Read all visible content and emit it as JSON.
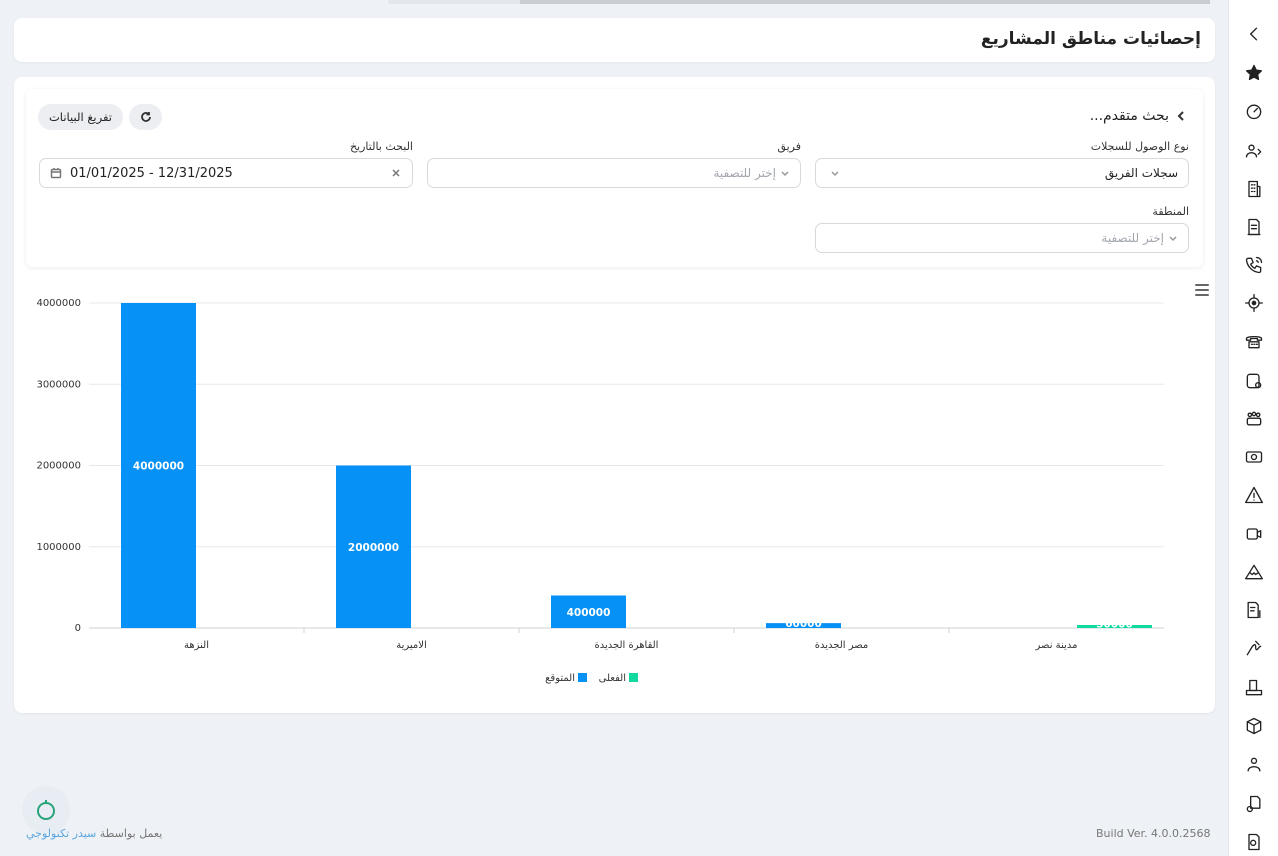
{
  "page": {
    "title": "إحصائيات مناطق المشاريع"
  },
  "filters": {
    "advanced_search": "بحث متقدم...",
    "clear_button": "تفريغ البيانات",
    "access_type": {
      "label": "نوع الوصول للسجلات",
      "value": "سجلات الفريق"
    },
    "team": {
      "label": "فريق",
      "placeholder": "إختر للتصفية"
    },
    "date_search": {
      "label": "البحث بالتاريخ",
      "value": "01/01/2025 - 12/31/2025"
    },
    "region": {
      "label": "المنطقة",
      "placeholder": "إختر للتصفية"
    }
  },
  "chart_data": {
    "type": "bar",
    "categories": [
      "النزهة",
      "الاميرية",
      "القاهرة الجديدة",
      "مصر الجديدة",
      "مدينة نصر"
    ],
    "series": [
      {
        "name": "المتوقع",
        "color": "#0591f5",
        "values": [
          4000000,
          2000000,
          400000,
          60000,
          0
        ]
      },
      {
        "name": "الفعلى",
        "color": "#12d9a0",
        "values": [
          0,
          0,
          0,
          0,
          30000
        ]
      }
    ],
    "data_labels": [
      "4000000",
      "2000000",
      "400000",
      "60000",
      "30000"
    ],
    "ylim": [
      0,
      4000000
    ],
    "yticks": [
      "0",
      "1000000",
      "2000000",
      "3000000",
      "4000000"
    ],
    "grid": true,
    "legend": "bottom-center"
  },
  "footer": {
    "powered_by": "يعمل بواسطة",
    "brand": "سيدر تكنولوجي",
    "build": "Build Ver. 4.0.0.2568"
  },
  "rail_icons": [
    "chevron-left-icon",
    "star-icon",
    "dashboard-gauge-icon",
    "users-switch-icon",
    "building-icon",
    "contract-icon",
    "phone-call-icon",
    "location-target-icon",
    "telephone-icon",
    "database-settings-icon",
    "team-icon",
    "money-icon",
    "warning-icon",
    "video-icon",
    "mountain-icon",
    "invoice-dollar-icon",
    "signature-icon",
    "delivery-doc-icon",
    "package-icon",
    "user-location-icon",
    "add-document-icon",
    "document-search-icon"
  ]
}
